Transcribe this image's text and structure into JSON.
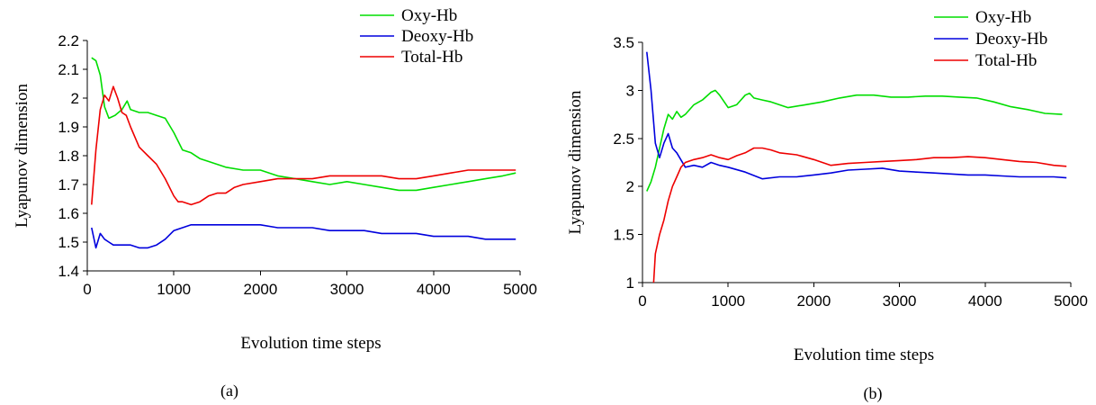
{
  "chart_data": [
    {
      "type": "line",
      "caption": "(a)",
      "xlabel": "Evolution time steps",
      "ylabel": "Lyapunov dimension",
      "xlim": [
        0,
        5000
      ],
      "ylim": [
        1.4,
        2.2
      ],
      "xticks": [
        0,
        1000,
        2000,
        3000,
        4000,
        5000
      ],
      "yticks": [
        1.4,
        1.5,
        1.6,
        1.7,
        1.8,
        1.9,
        2.0,
        2.1,
        2.2
      ],
      "ytick_labels": [
        "1.4",
        "1.5",
        "1.6",
        "1.7",
        "1.8",
        "1.9",
        "2",
        "2.1",
        "2.2"
      ],
      "grid": false,
      "legend": "top-right",
      "series": [
        {
          "name": "Oxy-Hb",
          "color": "#00dd00",
          "points": [
            [
              50,
              2.14
            ],
            [
              100,
              2.13
            ],
            [
              150,
              2.08
            ],
            [
              200,
              1.97
            ],
            [
              250,
              1.93
            ],
            [
              320,
              1.94
            ],
            [
              400,
              1.96
            ],
            [
              460,
              1.99
            ],
            [
              500,
              1.96
            ],
            [
              600,
              1.95
            ],
            [
              700,
              1.95
            ],
            [
              800,
              1.94
            ],
            [
              900,
              1.93
            ],
            [
              1000,
              1.88
            ],
            [
              1100,
              1.82
            ],
            [
              1200,
              1.81
            ],
            [
              1300,
              1.79
            ],
            [
              1400,
              1.78
            ],
            [
              1600,
              1.76
            ],
            [
              1800,
              1.75
            ],
            [
              2000,
              1.75
            ],
            [
              2200,
              1.73
            ],
            [
              2400,
              1.72
            ],
            [
              2600,
              1.71
            ],
            [
              2800,
              1.7
            ],
            [
              3000,
              1.71
            ],
            [
              3200,
              1.7
            ],
            [
              3400,
              1.69
            ],
            [
              3600,
              1.68
            ],
            [
              3800,
              1.68
            ],
            [
              4000,
              1.69
            ],
            [
              4200,
              1.7
            ],
            [
              4400,
              1.71
            ],
            [
              4600,
              1.72
            ],
            [
              4800,
              1.73
            ],
            [
              4950,
              1.74
            ]
          ]
        },
        {
          "name": "Deoxy-Hb",
          "color": "#0000dd",
          "points": [
            [
              50,
              1.55
            ],
            [
              100,
              1.48
            ],
            [
              150,
              1.53
            ],
            [
              200,
              1.51
            ],
            [
              250,
              1.5
            ],
            [
              300,
              1.49
            ],
            [
              400,
              1.49
            ],
            [
              500,
              1.49
            ],
            [
              600,
              1.48
            ],
            [
              700,
              1.48
            ],
            [
              800,
              1.49
            ],
            [
              900,
              1.51
            ],
            [
              1000,
              1.54
            ],
            [
              1100,
              1.55
            ],
            [
              1200,
              1.56
            ],
            [
              1400,
              1.56
            ],
            [
              1600,
              1.56
            ],
            [
              1800,
              1.56
            ],
            [
              2000,
              1.56
            ],
            [
              2200,
              1.55
            ],
            [
              2400,
              1.55
            ],
            [
              2600,
              1.55
            ],
            [
              2800,
              1.54
            ],
            [
              3000,
              1.54
            ],
            [
              3200,
              1.54
            ],
            [
              3400,
              1.53
            ],
            [
              3600,
              1.53
            ],
            [
              3800,
              1.53
            ],
            [
              4000,
              1.52
            ],
            [
              4200,
              1.52
            ],
            [
              4400,
              1.52
            ],
            [
              4600,
              1.51
            ],
            [
              4800,
              1.51
            ],
            [
              4950,
              1.51
            ]
          ]
        },
        {
          "name": "Total-Hb",
          "color": "#ee0000",
          "points": [
            [
              50,
              1.63
            ],
            [
              100,
              1.82
            ],
            [
              150,
              1.96
            ],
            [
              200,
              2.01
            ],
            [
              250,
              1.99
            ],
            [
              300,
              2.04
            ],
            [
              350,
              2.0
            ],
            [
              400,
              1.95
            ],
            [
              450,
              1.94
            ],
            [
              500,
              1.9
            ],
            [
              600,
              1.83
            ],
            [
              700,
              1.8
            ],
            [
              800,
              1.77
            ],
            [
              900,
              1.72
            ],
            [
              1000,
              1.66
            ],
            [
              1050,
              1.64
            ],
            [
              1100,
              1.64
            ],
            [
              1200,
              1.63
            ],
            [
              1300,
              1.64
            ],
            [
              1400,
              1.66
            ],
            [
              1500,
              1.67
            ],
            [
              1600,
              1.67
            ],
            [
              1700,
              1.69
            ],
            [
              1800,
              1.7
            ],
            [
              2000,
              1.71
            ],
            [
              2200,
              1.72
            ],
            [
              2400,
              1.72
            ],
            [
              2600,
              1.72
            ],
            [
              2800,
              1.73
            ],
            [
              3000,
              1.73
            ],
            [
              3200,
              1.73
            ],
            [
              3400,
              1.73
            ],
            [
              3600,
              1.72
            ],
            [
              3800,
              1.72
            ],
            [
              4000,
              1.73
            ],
            [
              4200,
              1.74
            ],
            [
              4400,
              1.75
            ],
            [
              4600,
              1.75
            ],
            [
              4800,
              1.75
            ],
            [
              4950,
              1.75
            ]
          ]
        }
      ]
    },
    {
      "type": "line",
      "caption": "(b)",
      "xlabel": "Evolution time steps",
      "ylabel": "Lyapunov dimension",
      "xlim": [
        0,
        5000
      ],
      "ylim": [
        1,
        3.5
      ],
      "xticks": [
        0,
        1000,
        2000,
        3000,
        4000,
        5000
      ],
      "yticks": [
        1,
        1.5,
        2,
        2.5,
        3,
        3.5
      ],
      "ytick_labels": [
        "1",
        "1.5",
        "2",
        "2.5",
        "3",
        "3.5"
      ],
      "grid": false,
      "legend": "top-right",
      "series": [
        {
          "name": "Oxy-Hb",
          "color": "#00dd00",
          "points": [
            [
              50,
              1.95
            ],
            [
              100,
              2.05
            ],
            [
              150,
              2.2
            ],
            [
              200,
              2.4
            ],
            [
              250,
              2.6
            ],
            [
              300,
              2.75
            ],
            [
              350,
              2.7
            ],
            [
              400,
              2.78
            ],
            [
              450,
              2.72
            ],
            [
              500,
              2.75
            ],
            [
              600,
              2.85
            ],
            [
              700,
              2.9
            ],
            [
              800,
              2.98
            ],
            [
              850,
              3.0
            ],
            [
              900,
              2.95
            ],
            [
              1000,
              2.82
            ],
            [
              1100,
              2.85
            ],
            [
              1200,
              2.95
            ],
            [
              1250,
              2.97
            ],
            [
              1300,
              2.92
            ],
            [
              1400,
              2.9
            ],
            [
              1500,
              2.88
            ],
            [
              1700,
              2.82
            ],
            [
              1900,
              2.85
            ],
            [
              2100,
              2.88
            ],
            [
              2300,
              2.92
            ],
            [
              2500,
              2.95
            ],
            [
              2700,
              2.95
            ],
            [
              2900,
              2.93
            ],
            [
              3100,
              2.93
            ],
            [
              3300,
              2.94
            ],
            [
              3500,
              2.94
            ],
            [
              3700,
              2.93
            ],
            [
              3900,
              2.92
            ],
            [
              4100,
              2.88
            ],
            [
              4300,
              2.83
            ],
            [
              4500,
              2.8
            ],
            [
              4700,
              2.76
            ],
            [
              4900,
              2.75
            ]
          ]
        },
        {
          "name": "Deoxy-Hb",
          "color": "#0000dd",
          "points": [
            [
              50,
              3.4
            ],
            [
              100,
              3.0
            ],
            [
              150,
              2.45
            ],
            [
              200,
              2.3
            ],
            [
              250,
              2.45
            ],
            [
              300,
              2.55
            ],
            [
              350,
              2.4
            ],
            [
              400,
              2.35
            ],
            [
              500,
              2.2
            ],
            [
              600,
              2.22
            ],
            [
              700,
              2.2
            ],
            [
              800,
              2.25
            ],
            [
              900,
              2.22
            ],
            [
              1000,
              2.2
            ],
            [
              1200,
              2.15
            ],
            [
              1400,
              2.08
            ],
            [
              1600,
              2.1
            ],
            [
              1800,
              2.1
            ],
            [
              2000,
              2.12
            ],
            [
              2200,
              2.14
            ],
            [
              2400,
              2.17
            ],
            [
              2600,
              2.18
            ],
            [
              2800,
              2.19
            ],
            [
              3000,
              2.16
            ],
            [
              3200,
              2.15
            ],
            [
              3400,
              2.14
            ],
            [
              3600,
              2.13
            ],
            [
              3800,
              2.12
            ],
            [
              4000,
              2.12
            ],
            [
              4200,
              2.11
            ],
            [
              4400,
              2.1
            ],
            [
              4600,
              2.1
            ],
            [
              4800,
              2.1
            ],
            [
              4950,
              2.09
            ]
          ]
        },
        {
          "name": "Total-Hb",
          "color": "#ee0000",
          "points": [
            [
              130,
              1.0
            ],
            [
              150,
              1.3
            ],
            [
              200,
              1.5
            ],
            [
              250,
              1.65
            ],
            [
              300,
              1.85
            ],
            [
              350,
              2.0
            ],
            [
              400,
              2.1
            ],
            [
              450,
              2.2
            ],
            [
              500,
              2.25
            ],
            [
              600,
              2.28
            ],
            [
              700,
              2.3
            ],
            [
              800,
              2.33
            ],
            [
              900,
              2.3
            ],
            [
              1000,
              2.28
            ],
            [
              1100,
              2.32
            ],
            [
              1200,
              2.35
            ],
            [
              1300,
              2.4
            ],
            [
              1400,
              2.4
            ],
            [
              1500,
              2.38
            ],
            [
              1600,
              2.35
            ],
            [
              1800,
              2.33
            ],
            [
              2000,
              2.28
            ],
            [
              2200,
              2.22
            ],
            [
              2400,
              2.24
            ],
            [
              2600,
              2.25
            ],
            [
              2800,
              2.26
            ],
            [
              3000,
              2.27
            ],
            [
              3200,
              2.28
            ],
            [
              3400,
              2.3
            ],
            [
              3600,
              2.3
            ],
            [
              3800,
              2.31
            ],
            [
              4000,
              2.3
            ],
            [
              4200,
              2.28
            ],
            [
              4400,
              2.26
            ],
            [
              4600,
              2.25
            ],
            [
              4800,
              2.22
            ],
            [
              4950,
              2.21
            ]
          ]
        }
      ]
    }
  ]
}
